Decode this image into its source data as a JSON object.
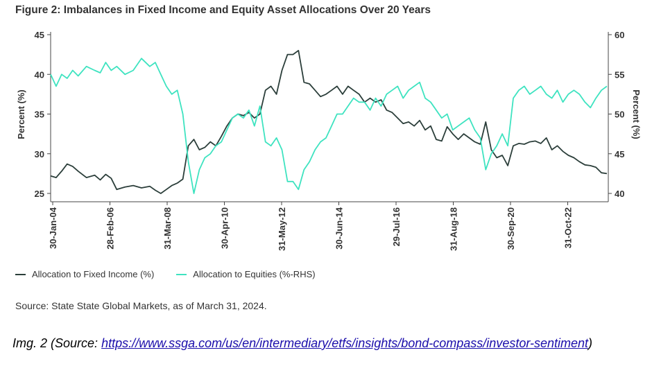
{
  "chart_data": {
    "type": "line",
    "title": "Figure 2: Imbalances in Fixed Income and Equity Asset Allocations Over 20 Years",
    "xlabel": "",
    "ylabel": "Percent (%)",
    "ylabel_right": "Percent (%)",
    "ylim": [
      25,
      45
    ],
    "ylim_right": [
      40,
      60
    ],
    "y_ticks": [
      25,
      30,
      35,
      40,
      45
    ],
    "y_ticks_right": [
      40,
      45,
      50,
      55,
      60
    ],
    "x_tick_labels": [
      "30-Jan-04",
      "28-Feb-06",
      "31-Mar-08",
      "30-Apr-10",
      "31-May-12",
      "30-Jun-14",
      "29-Jul-16",
      "31-Aug-18",
      "30-Sep-20",
      "31-Oct-22"
    ],
    "grid": false,
    "legend_position": "bottom",
    "series": [
      {
        "name": "Allocation to Fixed Income (%)",
        "axis": "left",
        "color": "#2b3e3a",
        "x": [
          2004.0,
          2004.2,
          2004.4,
          2004.6,
          2004.8,
          2005.0,
          2005.3,
          2005.6,
          2005.8,
          2006.0,
          2006.2,
          2006.4,
          2006.7,
          2007.0,
          2007.3,
          2007.6,
          2007.8,
          2008.0,
          2008.2,
          2008.4,
          2008.6,
          2008.8,
          2009.0,
          2009.2,
          2009.4,
          2009.6,
          2009.8,
          2010.0,
          2010.2,
          2010.4,
          2010.6,
          2010.8,
          2011.0,
          2011.2,
          2011.4,
          2011.6,
          2011.8,
          2012.0,
          2012.2,
          2012.4,
          2012.6,
          2012.8,
          2013.0,
          2013.2,
          2013.4,
          2013.6,
          2013.8,
          2014.0,
          2014.2,
          2014.4,
          2014.6,
          2014.8,
          2015.0,
          2015.2,
          2015.4,
          2015.6,
          2015.8,
          2016.0,
          2016.2,
          2016.4,
          2016.6,
          2016.8,
          2017.0,
          2017.2,
          2017.4,
          2017.6,
          2017.8,
          2018.0,
          2018.2,
          2018.4,
          2018.6,
          2018.8,
          2019.0,
          2019.2,
          2019.4,
          2019.6,
          2019.8,
          2020.0,
          2020.2,
          2020.4,
          2020.6,
          2020.8,
          2021.0,
          2021.2,
          2021.4,
          2021.6,
          2021.8,
          2022.0,
          2022.2,
          2022.4,
          2022.6,
          2022.8,
          2023.0,
          2023.2,
          2023.4,
          2023.6,
          2023.8,
          2024.0,
          2024.2
        ],
        "y": [
          27.2,
          27.0,
          27.8,
          28.7,
          28.4,
          27.8,
          27.0,
          27.3,
          26.7,
          27.4,
          26.9,
          25.5,
          25.8,
          26.0,
          25.7,
          25.9,
          25.4,
          25.0,
          25.5,
          26.0,
          26.3,
          26.8,
          31.0,
          31.8,
          30.5,
          30.8,
          31.5,
          31.0,
          32.2,
          33.5,
          34.5,
          35.0,
          34.8,
          35.2,
          34.5,
          35.0,
          38.0,
          38.5,
          37.5,
          40.5,
          42.5,
          42.5,
          43.0,
          39.0,
          38.8,
          38.0,
          37.2,
          37.5,
          38.0,
          38.5,
          37.5,
          38.5,
          38.0,
          37.5,
          36.5,
          37.0,
          36.5,
          36.8,
          35.5,
          35.2,
          34.5,
          33.8,
          34.0,
          33.5,
          34.2,
          33.0,
          33.5,
          31.8,
          31.6,
          33.4,
          32.5,
          31.8,
          32.5,
          32.0,
          31.5,
          31.2,
          34.0,
          30.5,
          29.5,
          29.8,
          28.5,
          31.0,
          31.3,
          31.2,
          31.5,
          31.6,
          31.3,
          32.0,
          30.5,
          31.0,
          30.3,
          29.8,
          29.5,
          29.0,
          28.6,
          28.5,
          28.3,
          27.6,
          27.5
        ]
      },
      {
        "name": "Allocation to Equities (%-RHS)",
        "axis": "right",
        "color": "#3ee3c0",
        "x": [
          2004.0,
          2004.2,
          2004.4,
          2004.6,
          2004.8,
          2005.0,
          2005.3,
          2005.6,
          2005.8,
          2006.0,
          2006.2,
          2006.4,
          2006.7,
          2007.0,
          2007.3,
          2007.6,
          2007.8,
          2008.0,
          2008.2,
          2008.4,
          2008.6,
          2008.8,
          2009.0,
          2009.2,
          2009.4,
          2009.6,
          2009.8,
          2010.0,
          2010.2,
          2010.4,
          2010.6,
          2010.8,
          2011.0,
          2011.2,
          2011.4,
          2011.6,
          2011.8,
          2012.0,
          2012.2,
          2012.4,
          2012.6,
          2012.8,
          2013.0,
          2013.2,
          2013.4,
          2013.6,
          2013.8,
          2014.0,
          2014.2,
          2014.4,
          2014.6,
          2014.8,
          2015.0,
          2015.2,
          2015.4,
          2015.6,
          2015.8,
          2016.0,
          2016.2,
          2016.4,
          2016.6,
          2016.8,
          2017.0,
          2017.2,
          2017.4,
          2017.6,
          2017.8,
          2018.0,
          2018.2,
          2018.4,
          2018.6,
          2018.8,
          2019.0,
          2019.2,
          2019.4,
          2019.6,
          2019.8,
          2020.0,
          2020.2,
          2020.4,
          2020.6,
          2020.8,
          2021.0,
          2021.2,
          2021.4,
          2021.6,
          2021.8,
          2022.0,
          2022.2,
          2022.4,
          2022.6,
          2022.8,
          2023.0,
          2023.2,
          2023.4,
          2023.6,
          2023.8,
          2024.0,
          2024.2
        ],
        "y": [
          55.0,
          53.5,
          55.0,
          54.5,
          55.5,
          54.8,
          56.0,
          55.5,
          55.2,
          56.5,
          55.5,
          56.0,
          55.0,
          55.5,
          57.0,
          56.0,
          56.5,
          55.0,
          53.5,
          52.5,
          53.0,
          50.0,
          44.0,
          40.0,
          43.0,
          44.5,
          45.0,
          46.0,
          46.5,
          48.0,
          49.5,
          50.0,
          49.5,
          50.5,
          48.5,
          51.0,
          46.5,
          46.0,
          47.0,
          45.5,
          41.5,
          41.5,
          40.5,
          43.0,
          44.0,
          45.5,
          46.5,
          47.0,
          48.5,
          50.0,
          50.0,
          51.0,
          52.0,
          51.5,
          51.5,
          50.5,
          52.0,
          51.0,
          52.5,
          53.0,
          53.5,
          52.0,
          53.0,
          53.5,
          54.0,
          52.0,
          51.5,
          50.5,
          49.5,
          50.0,
          48.0,
          48.5,
          49.0,
          49.5,
          48.0,
          47.0,
          43.0,
          45.0,
          46.0,
          47.5,
          46.0,
          52.0,
          53.0,
          53.5,
          52.5,
          53.0,
          53.5,
          52.5,
          52.0,
          53.0,
          51.5,
          52.5,
          53.0,
          52.5,
          51.5,
          50.8,
          52.0,
          53.0,
          53.5
        ]
      }
    ]
  },
  "source_text": "Source: State State Global Markets, as of March 31, 2024.",
  "caption": {
    "prefix": "Img. 2 (Source: ",
    "link_text": "https://www.ssga.com/us/en/intermediary/etfs/insights/bond-compass/investor-sentiment",
    "suffix": ")"
  }
}
